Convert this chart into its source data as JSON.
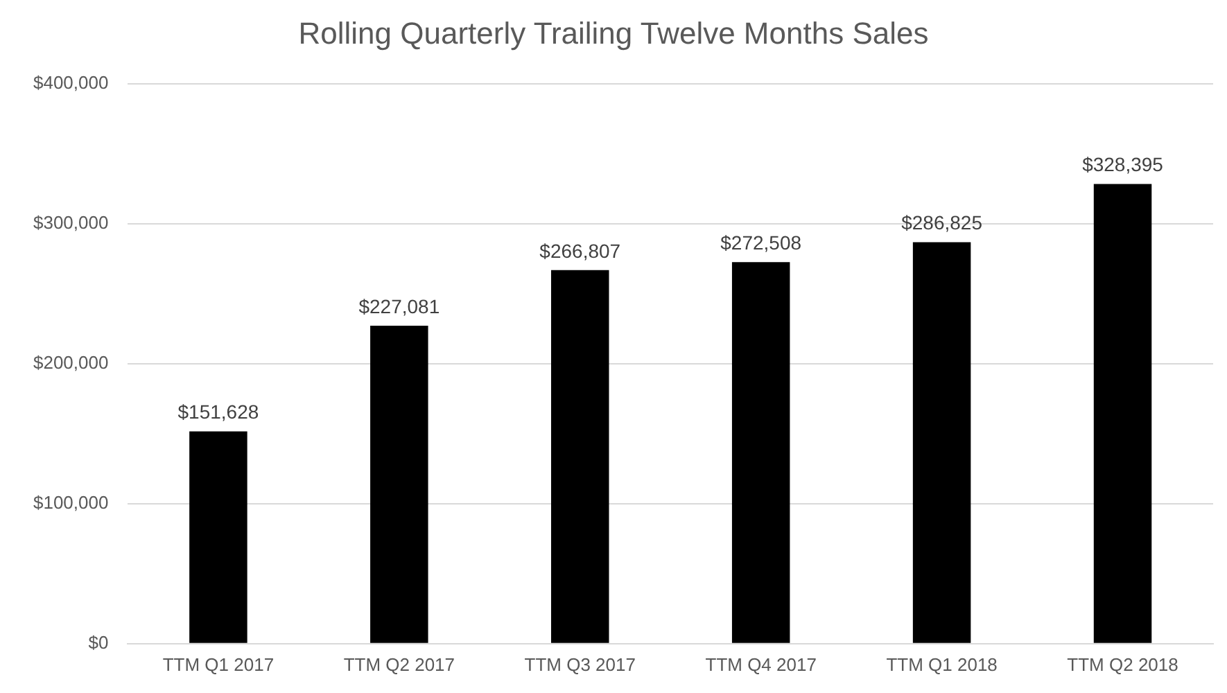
{
  "chart_data": {
    "type": "bar",
    "title": "Rolling Quarterly Trailing Twelve Months Sales",
    "categories": [
      "TTM Q1 2017",
      "TTM Q2 2017",
      "TTM Q3 2017",
      "TTM Q4 2017",
      "TTM Q1 2018",
      "TTM Q2 2018"
    ],
    "values": [
      151628,
      227081,
      266807,
      272508,
      286825,
      328395
    ],
    "value_labels": [
      "$151,628",
      "$227,081",
      "$266,807",
      "$272,508",
      "$286,825",
      "$328,395"
    ],
    "color": "#000000",
    "ylim": [
      0,
      400000
    ],
    "yticks": [
      {
        "value": 0,
        "label": "$0"
      },
      {
        "value": 100000,
        "label": "$100,000"
      },
      {
        "value": 200000,
        "label": "$200,000"
      },
      {
        "value": 300000,
        "label": "$300,000"
      },
      {
        "value": 400000,
        "label": "$400,000"
      }
    ],
    "grid": "y"
  }
}
